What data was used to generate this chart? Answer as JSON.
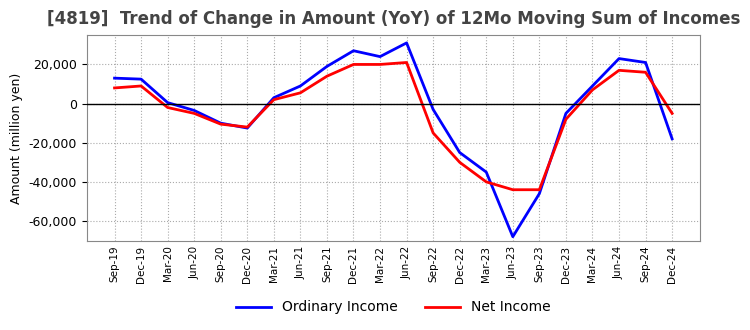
{
  "title": "[4819]  Trend of Change in Amount (YoY) of 12Mo Moving Sum of Incomes",
  "ylabel": "Amount (million yen)",
  "x_labels": [
    "Sep-19",
    "Dec-19",
    "Mar-20",
    "Jun-20",
    "Sep-20",
    "Dec-20",
    "Mar-21",
    "Jun-21",
    "Sep-21",
    "Dec-21",
    "Mar-22",
    "Jun-22",
    "Sep-22",
    "Dec-22",
    "Mar-23",
    "Jun-23",
    "Sep-23",
    "Dec-23",
    "Mar-24",
    "Jun-24",
    "Sep-24",
    "Dec-24"
  ],
  "ordinary_income": [
    13000,
    12500,
    500,
    -3500,
    -10000,
    -12500,
    3000,
    9000,
    19000,
    27000,
    24000,
    31000,
    -3000,
    -25000,
    -35000,
    -68000,
    -46000,
    -5000,
    9000,
    23000,
    21000,
    -18000
  ],
  "net_income": [
    8000,
    9000,
    -2000,
    -5000,
    -10500,
    -12000,
    2000,
    5500,
    14000,
    20000,
    20000,
    21000,
    -15000,
    -30000,
    -40000,
    -44000,
    -44000,
    -8000,
    7000,
    17000,
    16000,
    -5000
  ],
  "ordinary_color": "#0000ff",
  "net_color": "#ff0000",
  "ylim_min": -70000,
  "ylim_max": 35000,
  "yticks": [
    20000,
    0,
    -20000,
    -40000,
    -60000
  ],
  "grid_color": "#aaaaaa",
  "background_color": "#ffffff",
  "title_fontsize": 12,
  "title_color": "#444444",
  "legend_labels": [
    "Ordinary Income",
    "Net Income"
  ]
}
